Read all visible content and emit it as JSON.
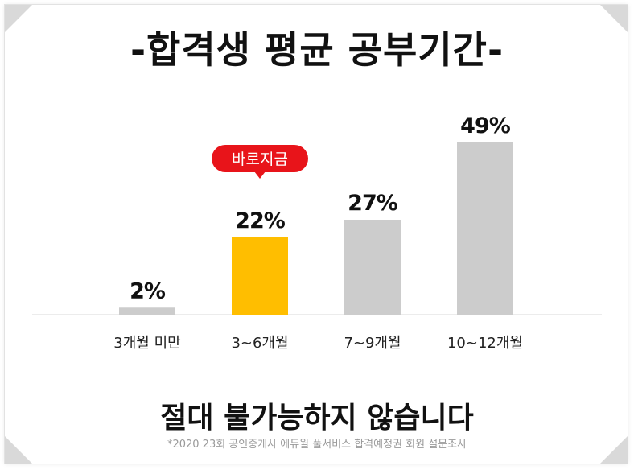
{
  "title": "-합격생 평균 공부기간-",
  "tagline": "절대 불가능하지 않습니다",
  "footnote": "*2020 23회 공인중개사 에듀윌 풀서비스 합격예정권 회원 설문조사",
  "colors": {
    "bar_default": "#cccccc",
    "bar_highlight": "#ffbe00",
    "badge": "#e8141a"
  },
  "chart_data": {
    "type": "bar",
    "categories": [
      "3개월 미만",
      "3~6개월",
      "7~9개월",
      "10~12개월"
    ],
    "values": [
      2,
      22,
      27,
      49
    ],
    "value_labels": [
      "2%",
      "22%",
      "27%",
      "49%"
    ],
    "unit": "%",
    "highlight_index": 1,
    "callout": {
      "category_index": 1,
      "text": "바로지금"
    },
    "grid": false,
    "legend": "none"
  }
}
